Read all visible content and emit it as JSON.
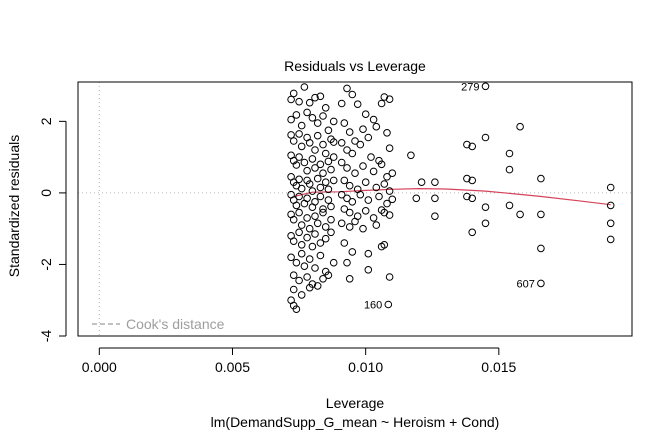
{
  "chart_data": {
    "type": "scatter",
    "title": "Residuals vs Leverage",
    "xlabel": "Leverage",
    "ylabel": "Standardized residuals",
    "subtitle": "lm(DemandSupp_G_mean ~ Heroism + Cond)",
    "xlim": [
      -0.0008,
      0.02
    ],
    "ylim": [
      -4.0,
      3.1
    ],
    "xticks": [
      0.0,
      0.005,
      0.01,
      0.015
    ],
    "xtick_labels": [
      "0.000",
      "0.005",
      "0.010",
      "0.015"
    ],
    "yticks": [
      -4,
      -2,
      0,
      2
    ],
    "ytick_labels": [
      "-4",
      "-2",
      "0",
      "2"
    ],
    "legend": {
      "label": "Cook's distance",
      "position": "bottom-left",
      "style": "dashed",
      "color": "#9e9e9e"
    },
    "reference_lines": {
      "x": 0,
      "y": 0,
      "style": "dotted",
      "color": "#b5b5b5"
    },
    "smooth_line": {
      "color": "#d5435a",
      "x": [
        0.0073,
        0.008,
        0.009,
        0.01,
        0.011,
        0.012,
        0.013,
        0.014,
        0.0145,
        0.0155,
        0.0166,
        0.018,
        0.0192
      ],
      "y": [
        -0.1,
        0.02,
        0.03,
        0.07,
        0.1,
        0.12,
        0.11,
        0.07,
        0.05,
        -0.02,
        -0.1,
        -0.22,
        -0.33
      ]
    },
    "labeled_points": [
      {
        "label": "279",
        "x": 0.0145,
        "y": 2.98,
        "side": "left"
      },
      {
        "label": "160",
        "x": 0.01085,
        "y": -3.12,
        "side": "left"
      },
      {
        "label": "607",
        "x": 0.01658,
        "y": -2.53,
        "side": "left"
      }
    ],
    "points": [
      [
        0.0072,
        2.61
      ],
      [
        0.0073,
        2.78
      ],
      [
        0.0075,
        2.55
      ],
      [
        0.0077,
        2.96
      ],
      [
        0.0079,
        2.52
      ],
      [
        0.0081,
        2.66
      ],
      [
        0.0083,
        2.7
      ],
      [
        0.0085,
        2.38
      ],
      [
        0.0072,
        2.05
      ],
      [
        0.0074,
        2.18
      ],
      [
        0.0076,
        1.88
      ],
      [
        0.0078,
        2.25
      ],
      [
        0.008,
        2.1
      ],
      [
        0.0082,
        1.95
      ],
      [
        0.0084,
        2.15
      ],
      [
        0.0086,
        1.75
      ],
      [
        0.0088,
        2.0
      ],
      [
        0.0072,
        1.62
      ],
      [
        0.0073,
        1.45
      ],
      [
        0.0075,
        1.65
      ],
      [
        0.0076,
        1.3
      ],
      [
        0.0078,
        1.55
      ],
      [
        0.0079,
        1.4
      ],
      [
        0.0081,
        1.2
      ],
      [
        0.0082,
        1.6
      ],
      [
        0.0084,
        1.35
      ],
      [
        0.0085,
        1.1
      ],
      [
        0.0087,
        1.5
      ],
      [
        0.0088,
        1.42
      ],
      [
        0.0072,
        1.05
      ],
      [
        0.0073,
        0.9
      ],
      [
        0.0074,
        0.78
      ],
      [
        0.0075,
        1.0
      ],
      [
        0.0077,
        0.85
      ],
      [
        0.0078,
        0.62
      ],
      [
        0.008,
        0.95
      ],
      [
        0.0081,
        0.7
      ],
      [
        0.0083,
        0.8
      ],
      [
        0.0084,
        0.55
      ],
      [
        0.0086,
        0.88
      ],
      [
        0.0087,
        0.65
      ],
      [
        0.0088,
        1.0
      ],
      [
        0.0072,
        0.45
      ],
      [
        0.0073,
        0.3
      ],
      [
        0.0074,
        0.2
      ],
      [
        0.0075,
        0.38
      ],
      [
        0.0076,
        0.12
      ],
      [
        0.0078,
        0.35
      ],
      [
        0.0079,
        0.25
      ],
      [
        0.008,
        0.05
      ],
      [
        0.0082,
        0.4
      ],
      [
        0.0083,
        0.15
      ],
      [
        0.0085,
        0.3
      ],
      [
        0.0086,
        0.1
      ],
      [
        0.0088,
        0.35
      ],
      [
        0.0072,
        -0.05
      ],
      [
        0.0073,
        -0.2
      ],
      [
        0.0074,
        -0.35
      ],
      [
        0.0075,
        -0.1
      ],
      [
        0.0077,
        -0.3
      ],
      [
        0.0078,
        -0.15
      ],
      [
        0.008,
        -0.4
      ],
      [
        0.0081,
        -0.25
      ],
      [
        0.0083,
        -0.1
      ],
      [
        0.0084,
        -0.45
      ],
      [
        0.0086,
        -0.2
      ],
      [
        0.0087,
        -0.38
      ],
      [
        0.0072,
        -0.6
      ],
      [
        0.0073,
        -0.75
      ],
      [
        0.0075,
        -0.55
      ],
      [
        0.0076,
        -0.9
      ],
      [
        0.0078,
        -0.7
      ],
      [
        0.0079,
        -1.0
      ],
      [
        0.0081,
        -0.65
      ],
      [
        0.0082,
        -0.85
      ],
      [
        0.0084,
        -0.55
      ],
      [
        0.0085,
        -0.95
      ],
      [
        0.0087,
        -0.75
      ],
      [
        0.0072,
        -1.2
      ],
      [
        0.0073,
        -1.35
      ],
      [
        0.0075,
        -1.1
      ],
      [
        0.0076,
        -1.45
      ],
      [
        0.0078,
        -1.25
      ],
      [
        0.008,
        -1.5
      ],
      [
        0.0081,
        -1.15
      ],
      [
        0.0083,
        -1.4
      ],
      [
        0.0085,
        -1.28
      ],
      [
        0.0087,
        -1.1
      ],
      [
        0.0072,
        -1.8
      ],
      [
        0.0074,
        -1.95
      ],
      [
        0.0076,
        -1.7
      ],
      [
        0.0077,
        -2.05
      ],
      [
        0.0079,
        -1.85
      ],
      [
        0.0081,
        -2.1
      ],
      [
        0.0083,
        -1.75
      ],
      [
        0.0085,
        -2.2
      ],
      [
        0.0088,
        -1.95
      ],
      [
        0.0073,
        -2.3
      ],
      [
        0.0075,
        -2.45
      ],
      [
        0.0078,
        -2.35
      ],
      [
        0.008,
        -2.55
      ],
      [
        0.0084,
        -2.4
      ],
      [
        0.0086,
        -2.3
      ],
      [
        0.0073,
        -2.7
      ],
      [
        0.0076,
        -2.85
      ],
      [
        0.0079,
        -2.65
      ],
      [
        0.0082,
        -2.6
      ],
      [
        0.0072,
        -3.0
      ],
      [
        0.0073,
        -3.15
      ],
      [
        0.0074,
        -3.25
      ],
      [
        0.0091,
        2.5
      ],
      [
        0.0093,
        2.92
      ],
      [
        0.0095,
        2.75
      ],
      [
        0.0097,
        2.48
      ],
      [
        0.01,
        2.2
      ],
      [
        0.0103,
        2.05
      ],
      [
        0.0106,
        2.5
      ],
      [
        0.0107,
        2.68
      ],
      [
        0.0109,
        2.62
      ],
      [
        0.0092,
        1.95
      ],
      [
        0.0094,
        1.7
      ],
      [
        0.0096,
        1.45
      ],
      [
        0.0099,
        1.78
      ],
      [
        0.0101,
        1.55
      ],
      [
        0.0104,
        1.85
      ],
      [
        0.0108,
        1.68
      ],
      [
        0.0091,
        1.4
      ],
      [
        0.0093,
        1.2
      ],
      [
        0.0095,
        1.1
      ],
      [
        0.0098,
        1.35
      ],
      [
        0.0102,
        1.0
      ],
      [
        0.0105,
        0.9
      ],
      [
        0.0109,
        1.25
      ],
      [
        0.0091,
        0.85
      ],
      [
        0.0093,
        0.7
      ],
      [
        0.0096,
        0.55
      ],
      [
        0.0099,
        0.75
      ],
      [
        0.0103,
        0.6
      ],
      [
        0.0106,
        0.8
      ],
      [
        0.0108,
        0.45
      ],
      [
        0.011,
        0.55
      ],
      [
        0.0092,
        0.35
      ],
      [
        0.0094,
        0.2
      ],
      [
        0.0097,
        0.1
      ],
      [
        0.01,
        0.3
      ],
      [
        0.0104,
        0.15
      ],
      [
        0.0107,
        0.25
      ],
      [
        0.0109,
        0.05
      ],
      [
        0.0091,
        -0.05
      ],
      [
        0.0093,
        -0.15
      ],
      [
        0.0095,
        -0.25
      ],
      [
        0.0098,
        -0.05
      ],
      [
        0.0101,
        -0.2
      ],
      [
        0.0105,
        -0.1
      ],
      [
        0.0108,
        -0.3
      ],
      [
        0.011,
        -0.18
      ],
      [
        0.0092,
        -0.45
      ],
      [
        0.0094,
        -0.55
      ],
      [
        0.0097,
        -0.65
      ],
      [
        0.01,
        -0.5
      ],
      [
        0.0103,
        -0.7
      ],
      [
        0.0106,
        -0.48
      ],
      [
        0.0107,
        -0.55
      ],
      [
        0.0109,
        -0.62
      ],
      [
        0.0091,
        -0.85
      ],
      [
        0.0094,
        -0.95
      ],
      [
        0.0096,
        -0.8
      ],
      [
        0.0099,
        -1.0
      ],
      [
        0.0104,
        -0.9
      ],
      [
        0.0092,
        -1.4
      ],
      [
        0.0095,
        -1.65
      ],
      [
        0.0101,
        -1.7
      ],
      [
        0.0106,
        -1.5
      ],
      [
        0.0107,
        -1.45
      ],
      [
        0.0093,
        -1.95
      ],
      [
        0.0101,
        -2.15
      ],
      [
        0.0094,
        -2.4
      ],
      [
        0.0109,
        -2.35
      ],
      [
        0.0117,
        1.05
      ],
      [
        0.0121,
        0.3
      ],
      [
        0.0119,
        -0.15
      ],
      [
        0.0126,
        0.3
      ],
      [
        0.0126,
        -0.15
      ],
      [
        0.0126,
        -0.65
      ],
      [
        0.0138,
        1.35
      ],
      [
        0.014,
        1.3
      ],
      [
        0.0138,
        0.4
      ],
      [
        0.014,
        0.35
      ],
      [
        0.0138,
        -0.1
      ],
      [
        0.014,
        -0.15
      ],
      [
        0.014,
        -1.1
      ],
      [
        0.0145,
        2.98
      ],
      [
        0.0145,
        1.55
      ],
      [
        0.0145,
        -0.4
      ],
      [
        0.0145,
        -0.85
      ],
      [
        0.0154,
        1.1
      ],
      [
        0.0154,
        0.65
      ],
      [
        0.0154,
        -0.35
      ],
      [
        0.0158,
        1.85
      ],
      [
        0.0158,
        -0.6
      ],
      [
        0.01658,
        0.4
      ],
      [
        0.01658,
        -0.6
      ],
      [
        0.01658,
        -1.55
      ],
      [
        0.01658,
        -2.53
      ],
      [
        0.0192,
        0.15
      ],
      [
        0.0192,
        -0.35
      ],
      [
        0.0192,
        -0.85
      ],
      [
        0.0192,
        -1.3
      ],
      [
        0.01085,
        -3.12
      ]
    ]
  }
}
